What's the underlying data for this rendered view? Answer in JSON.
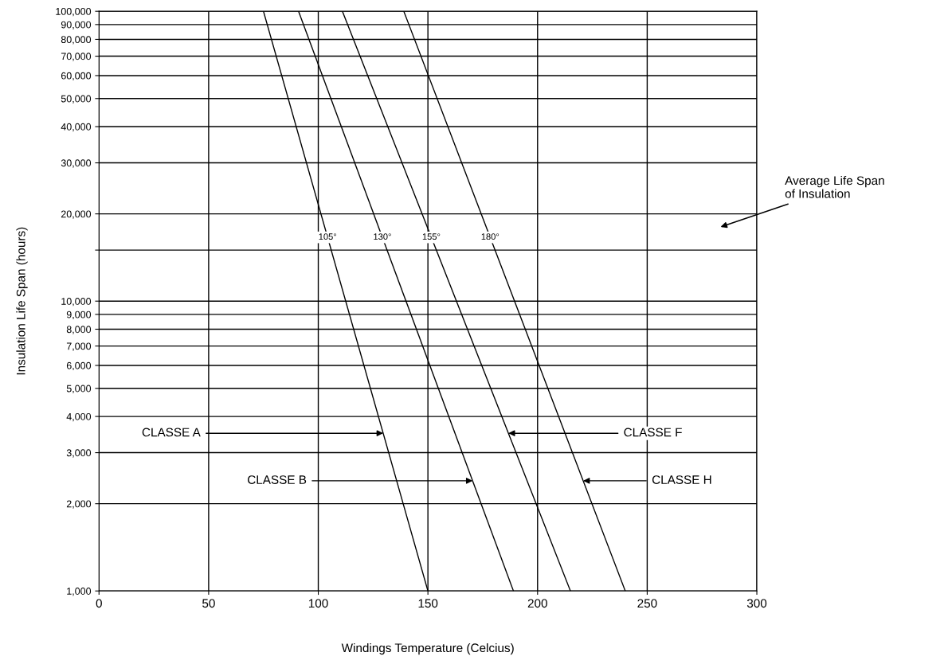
{
  "chart_data": {
    "type": "line",
    "xlabel": "Windings Temperature (Celcius)",
    "ylabel": "Insulation Life Span (hours)",
    "series": [
      {
        "name": "105°",
        "color": "#000000",
        "x": [
          75,
          150
        ],
        "values": [
          100000,
          1000
        ]
      },
      {
        "name": "130°",
        "color": "#000000",
        "x": [
          91,
          189
        ],
        "values": [
          100000,
          1000
        ]
      },
      {
        "name": "155°",
        "color": "#000000",
        "x": [
          111,
          215
        ],
        "values": [
          100000,
          1000
        ]
      },
      {
        "name": "180°",
        "color": "#000000",
        "x": [
          139,
          240
        ],
        "values": [
          100000,
          1000
        ]
      }
    ],
    "annotations": [
      {
        "text": "CLASSE A",
        "x": 129.6,
        "y": 3500
      },
      {
        "text": "CLASSE B",
        "x": 170.4,
        "y": 2400
      },
      {
        "text": "CLASSE F",
        "x": 186.7,
        "y": 3500
      },
      {
        "text": "CLASSE H",
        "x": 220.8,
        "y": 2400
      },
      "Average Life Span\nof Insulation"
    ],
    "xlim": [
      0,
      300
    ],
    "xticks": [
      0,
      50,
      100,
      150,
      200,
      250,
      300
    ],
    "ylim": [
      1000,
      100000
    ],
    "yticks": [
      {
        "value": 1000,
        "label": "1,000"
      },
      {
        "value": 2000,
        "label": "2,000"
      },
      {
        "value": 3000,
        "label": "3,000"
      },
      {
        "value": 4000,
        "label": "4,000"
      },
      {
        "value": 5000,
        "label": "5,000"
      },
      {
        "value": 6000,
        "label": "6,000"
      },
      {
        "value": 7000,
        "label": "7,000"
      },
      {
        "value": 8000,
        "label": "8,000"
      },
      {
        "value": 9000,
        "label": "9,000"
      },
      {
        "value": 10000,
        "label": "10,000"
      },
      {
        "value": 15000,
        "label": null
      },
      {
        "value": 20000,
        "label": "20,000"
      },
      {
        "value": 30000,
        "label": "30,000"
      },
      {
        "value": 40000,
        "label": "40,000"
      },
      {
        "value": 50000,
        "label": "50,000"
      },
      {
        "value": 60000,
        "label": "60,000"
      },
      {
        "value": 70000,
        "label": "70,000"
      },
      {
        "value": 80000,
        "label": "80,000"
      },
      {
        "value": 90000,
        "label": "90,000"
      },
      {
        "value": 100000,
        "label": "100,000"
      }
    ],
    "log": "y",
    "grid": true,
    "legend": false,
    "marker": "none",
    "line_style": "solid"
  }
}
